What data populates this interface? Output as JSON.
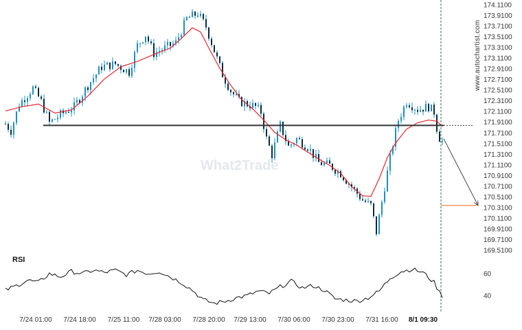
{
  "chart_data": [
    {
      "type": "candlestick",
      "title": "",
      "xlabel": "",
      "ylabel": "",
      "ylim": [
        169.5,
        174.1
      ],
      "price_ticks": [
        "174.1100",
        "173.9100",
        "173.7100",
        "173.5100",
        "173.3100",
        "173.1100",
        "172.9100",
        "172.7100",
        "172.5100",
        "172.3100",
        "172.1100",
        "171.9100",
        "171.7100",
        "171.5100",
        "171.3100",
        "171.1100",
        "170.9100",
        "170.7100",
        "170.5100",
        "170.3100",
        "170.1100",
        "169.9100",
        "169.7100",
        "169.5100"
      ],
      "x_ticks": [
        "7/24 01:00",
        "7/24 18:00",
        "7/25 11:00",
        "7/28 03:00",
        "7/28 20:00",
        "7/29 13:00",
        "7/30 06:00",
        "7/30 23:00",
        "7/31 16:00",
        "8/1 09:30"
      ],
      "price_path": [
        [
          0,
          171.88
        ],
        [
          2,
          171.75
        ],
        [
          5,
          172.25
        ],
        [
          10,
          172.55
        ],
        [
          13,
          172.3
        ],
        [
          16,
          171.9
        ],
        [
          20,
          172.05
        ],
        [
          25,
          172.2
        ],
        [
          30,
          172.6
        ],
        [
          35,
          172.95
        ],
        [
          40,
          173.0
        ],
        [
          45,
          172.85
        ],
        [
          48,
          173.35
        ],
        [
          51,
          173.55
        ],
        [
          54,
          173.2
        ],
        [
          58,
          173.3
        ],
        [
          62,
          173.4
        ],
        [
          66,
          173.85
        ],
        [
          70,
          173.95
        ],
        [
          73,
          173.7
        ],
        [
          76,
          173.25
        ],
        [
          79,
          172.8
        ],
        [
          82,
          172.5
        ],
        [
          85,
          172.3
        ],
        [
          88,
          172.25
        ],
        [
          91,
          172.2
        ],
        [
          93,
          172.1
        ],
        [
          95,
          171.6
        ],
        [
          97,
          171.3
        ],
        [
          100,
          171.85
        ],
        [
          103,
          171.45
        ],
        [
          106,
          171.6
        ],
        [
          110,
          171.45
        ],
        [
          114,
          171.15
        ],
        [
          118,
          171.1
        ],
        [
          122,
          170.95
        ],
        [
          126,
          170.7
        ],
        [
          130,
          170.45
        ],
        [
          133,
          170.35
        ],
        [
          135,
          169.85
        ],
        [
          138,
          170.7
        ],
        [
          141,
          171.5
        ],
        [
          143,
          171.95
        ],
        [
          146,
          172.3
        ],
        [
          150,
          172.15
        ],
        [
          154,
          172.2
        ],
        [
          156,
          172.1
        ],
        [
          157.5,
          171.65
        ],
        [
          159,
          171.55
        ]
      ],
      "series": [
        {
          "name": "",
          "color": "#e8262b",
          "values": [
            [
              0,
              172.12
            ],
            [
              6,
              172.2
            ],
            [
              12,
              172.25
            ],
            [
              18,
              172.08
            ],
            [
              24,
              172.14
            ],
            [
              30,
              172.4
            ],
            [
              36,
              172.72
            ],
            [
              42,
              172.95
            ],
            [
              48,
              173.05
            ],
            [
              54,
              173.18
            ],
            [
              60,
              173.3
            ],
            [
              64,
              173.48
            ],
            [
              68,
              173.68
            ],
            [
              71,
              173.6
            ],
            [
              74,
              173.3
            ],
            [
              78,
              172.92
            ],
            [
              82,
              172.6
            ],
            [
              86,
              172.33
            ],
            [
              90,
              172.16
            ],
            [
              94,
              171.95
            ],
            [
              98,
              171.72
            ],
            [
              102,
              171.58
            ],
            [
              106,
              171.48
            ],
            [
              110,
              171.35
            ],
            [
              114,
              171.22
            ],
            [
              118,
              171.1
            ],
            [
              122,
              170.95
            ],
            [
              126,
              170.7
            ],
            [
              130,
              170.53
            ],
            [
              133,
              170.52
            ],
            [
              136,
              170.85
            ],
            [
              139,
              171.25
            ],
            [
              142,
              171.52
            ],
            [
              146,
              171.78
            ],
            [
              150,
              171.9
            ],
            [
              154,
              171.95
            ],
            [
              157,
              171.93
            ],
            [
              159,
              171.83
            ]
          ]
        },
        {
          "name": "RSI",
          "color": "#111111",
          "values": [
            [
              0,
              45
            ],
            [
              4,
              49
            ],
            [
              8,
              54
            ],
            [
              12,
              52
            ],
            [
              16,
              60
            ],
            [
              20,
              57
            ],
            [
              24,
              62
            ],
            [
              28,
              60
            ],
            [
              32,
              63
            ],
            [
              36,
              61
            ],
            [
              40,
              63
            ],
            [
              44,
              59
            ],
            [
              48,
              63
            ],
            [
              52,
              60
            ],
            [
              56,
              62
            ],
            [
              60,
              57
            ],
            [
              64,
              52
            ],
            [
              68,
              45
            ],
            [
              72,
              36
            ],
            [
              76,
              33
            ],
            [
              80,
              35
            ],
            [
              84,
              38
            ],
            [
              88,
              40
            ],
            [
              92,
              44
            ],
            [
              96,
              42
            ],
            [
              100,
              48
            ],
            [
              104,
              53
            ],
            [
              108,
              47
            ],
            [
              112,
              49
            ],
            [
              116,
              45
            ],
            [
              120,
              37
            ],
            [
              124,
              36
            ],
            [
              128,
              35
            ],
            [
              132,
              38
            ],
            [
              136,
              44
            ],
            [
              140,
              56
            ],
            [
              144,
              62
            ],
            [
              148,
              64
            ],
            [
              152,
              61
            ],
            [
              156,
              52
            ],
            [
              158,
              43
            ],
            [
              159,
              40
            ]
          ]
        }
      ],
      "support_line": 171.85,
      "last_price_line": 171.85,
      "forecast": {
        "from": [
          159,
          171.6
        ],
        "to": [
          170,
          170.35
        ],
        "target": 170.35
      },
      "rsi": {
        "label": "RSI",
        "ticks": [
          "60",
          "40"
        ],
        "ylim": [
          30,
          70
        ]
      },
      "colors": {
        "candle": "#1c8ec7",
        "ma": "#e8262b",
        "support": "#333333",
        "forecast_target": "#f07b2a",
        "rsi": "#111111",
        "current_time": "#2a6e3f"
      },
      "watermark": "What2Trade",
      "site": "www.autochartist.com",
      "grid": false
    }
  ]
}
